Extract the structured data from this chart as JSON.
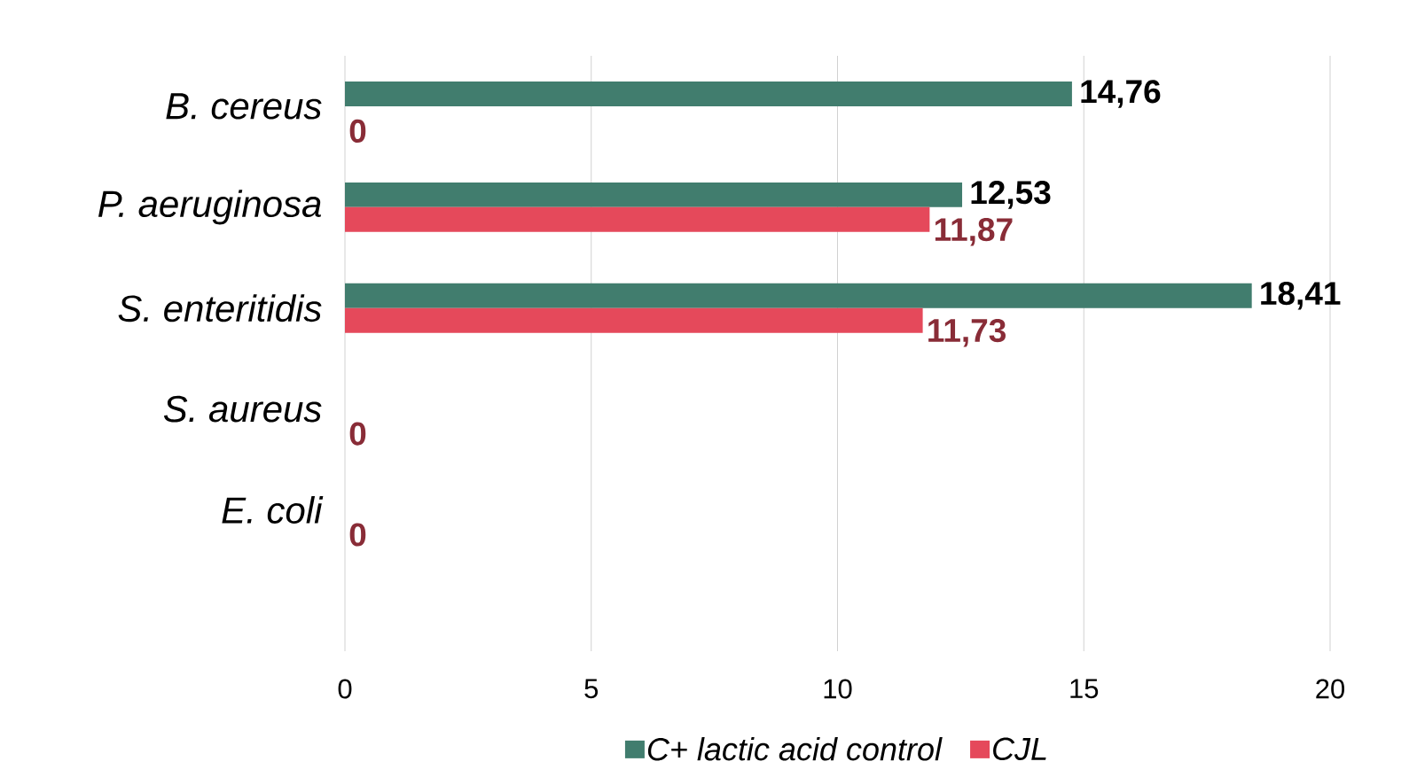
{
  "chart_data": {
    "type": "bar",
    "orientation": "horizontal",
    "categories": [
      "B. cereus",
      "P. aeruginosa",
      "S. enteritidis",
      "S. aureus",
      "E. coli"
    ],
    "series": [
      {
        "name": "C+ lactic acid control",
        "color": "#417d6e",
        "values": [
          14.76,
          12.53,
          18.41,
          null,
          null
        ],
        "value_labels": [
          "14,76",
          "12,53",
          "18,41",
          null,
          null
        ]
      },
      {
        "name": "CJL",
        "color": "#e5495b",
        "values": [
          0,
          11.87,
          11.73,
          0,
          0
        ],
        "value_labels": [
          "0",
          "11,87",
          "11,73",
          "0",
          "0"
        ]
      }
    ],
    "xlim": [
      0,
      20
    ],
    "xticks": [
      0,
      5,
      10,
      15,
      20
    ],
    "grid": "x",
    "legend": "bottom"
  }
}
